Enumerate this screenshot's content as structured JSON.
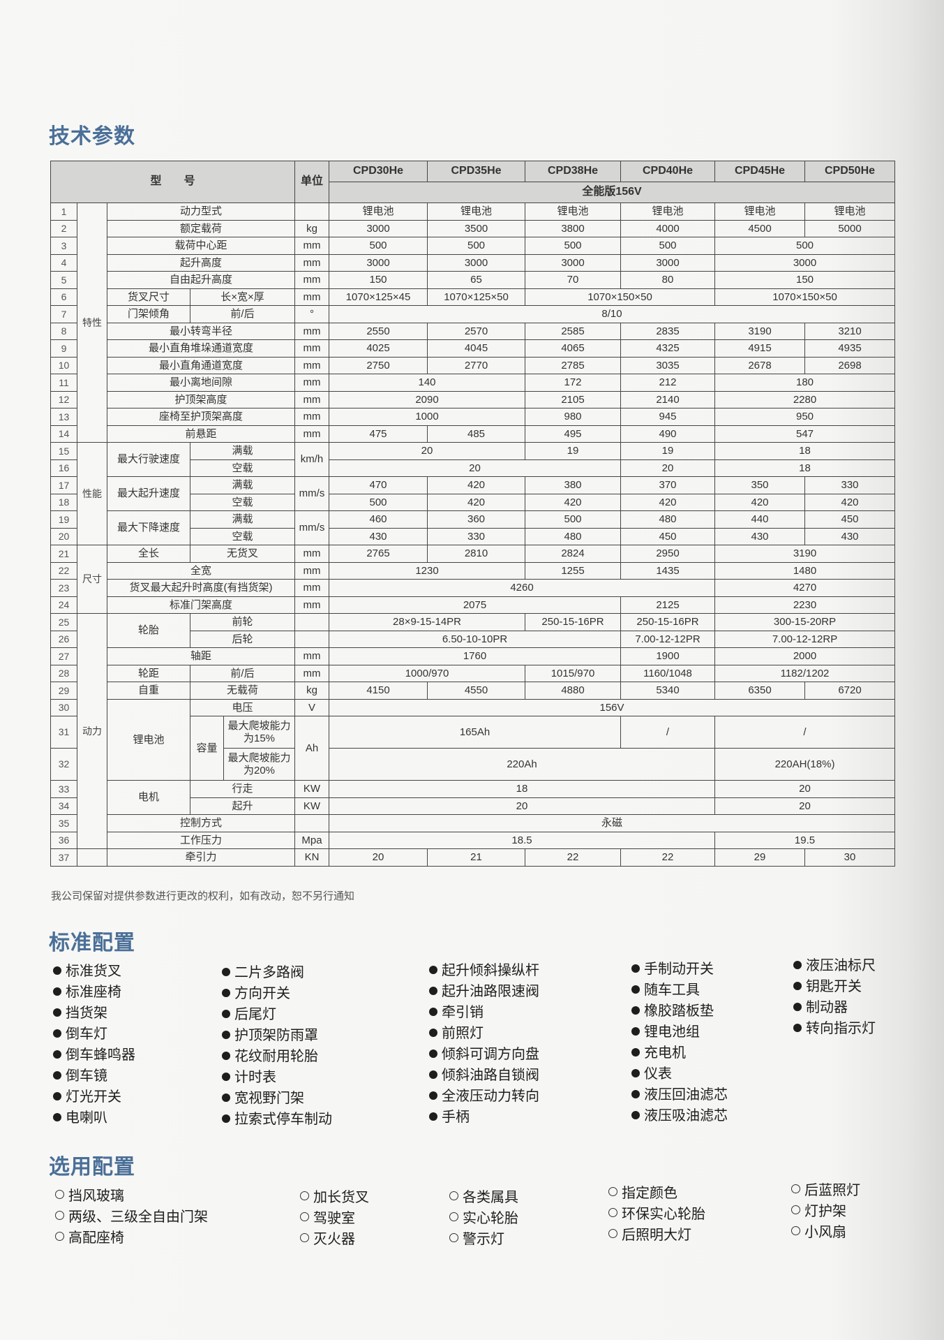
{
  "spec": {
    "title": "技术参数",
    "header": {
      "model_label": "型　　号",
      "unit_label": "单位",
      "models": [
        "CPD30He",
        "CPD35He",
        "CPD38He",
        "CPD40He",
        "CPD45He",
        "CPD50He"
      ],
      "edition": "全能版156V"
    },
    "rows": [
      {
        "no": "1",
        "cat": {
          "t": "特性",
          "rs": 14
        },
        "labels": [
          {
            "t": "动力型式",
            "cs": 3
          }
        ],
        "unit": {
          "t": "",
          "rs": 1
        },
        "values": [
          "锂电池",
          "锂电池",
          "锂电池",
          "锂电池",
          "锂电池",
          "锂电池"
        ]
      },
      {
        "no": "2",
        "labels": [
          {
            "t": "额定载荷",
            "cs": 3
          }
        ],
        "unit": {
          "t": "kg",
          "rs": 1
        },
        "values": [
          "3000",
          "3500",
          "3800",
          "4000",
          "4500",
          "5000"
        ]
      },
      {
        "no": "3",
        "labels": [
          {
            "t": "载荷中心距",
            "cs": 3
          }
        ],
        "unit": {
          "t": "mm",
          "rs": 1
        },
        "values": [
          "500",
          "500",
          "500",
          "500",
          {
            "v": "500",
            "span": 2
          }
        ]
      },
      {
        "no": "4",
        "labels": [
          {
            "t": "起升高度",
            "cs": 3
          }
        ],
        "unit": {
          "t": "mm",
          "rs": 1
        },
        "values": [
          "3000",
          "3000",
          "3000",
          "3000",
          {
            "v": "3000",
            "span": 2
          }
        ]
      },
      {
        "no": "5",
        "labels": [
          {
            "t": "自由起升高度",
            "cs": 3
          }
        ],
        "unit": {
          "t": "mm",
          "rs": 1
        },
        "values": [
          "150",
          "65",
          "70",
          "80",
          {
            "v": "150",
            "span": 2
          }
        ]
      },
      {
        "no": "6",
        "labels": [
          {
            "t": "货叉尺寸",
            "cs": 1
          },
          {
            "t": "长×宽×厚",
            "cs": 2
          }
        ],
        "unit": {
          "t": "mm",
          "rs": 1
        },
        "values": [
          "1070×125×45",
          "1070×125×50",
          {
            "v": "1070×150×50",
            "span": 2
          },
          {
            "v": "1070×150×50",
            "span": 2
          }
        ]
      },
      {
        "no": "7",
        "labels": [
          {
            "t": "门架倾角",
            "cs": 1
          },
          {
            "t": "前/后",
            "cs": 2
          }
        ],
        "unit": {
          "t": "°",
          "rs": 1
        },
        "values": [
          {
            "v": "8/10",
            "span": 6
          }
        ]
      },
      {
        "no": "8",
        "labels": [
          {
            "t": "最小转弯半径",
            "cs": 3
          }
        ],
        "unit": {
          "t": "mm",
          "rs": 1
        },
        "values": [
          "2550",
          "2570",
          "2585",
          "2835",
          "3190",
          "3210"
        ]
      },
      {
        "no": "9",
        "labels": [
          {
            "t": "最小直角堆垛通道宽度",
            "cs": 3
          }
        ],
        "unit": {
          "t": "mm",
          "rs": 1
        },
        "values": [
          "4025",
          "4045",
          "4065",
          "4325",
          "4915",
          "4935"
        ]
      },
      {
        "no": "10",
        "labels": [
          {
            "t": "最小直角通道宽度",
            "cs": 3
          }
        ],
        "unit": {
          "t": "mm",
          "rs": 1
        },
        "values": [
          "2750",
          "2770",
          "2785",
          "3035",
          "2678",
          "2698"
        ]
      },
      {
        "no": "11",
        "labels": [
          {
            "t": "最小离地间隙",
            "cs": 3
          }
        ],
        "unit": {
          "t": "mm",
          "rs": 1
        },
        "values": [
          {
            "v": "140",
            "span": 2
          },
          "172",
          "212",
          {
            "v": "180",
            "span": 2
          }
        ]
      },
      {
        "no": "12",
        "labels": [
          {
            "t": "护顶架高度",
            "cs": 3
          }
        ],
        "unit": {
          "t": "mm",
          "rs": 1
        },
        "values": [
          {
            "v": "2090",
            "span": 2
          },
          "2105",
          "2140",
          {
            "v": "2280",
            "span": 2
          }
        ]
      },
      {
        "no": "13",
        "labels": [
          {
            "t": "座椅至护顶架高度",
            "cs": 3
          }
        ],
        "unit": {
          "t": "mm",
          "rs": 1
        },
        "values": [
          {
            "v": "1000",
            "span": 2
          },
          "980",
          "945",
          {
            "v": "950",
            "span": 2
          }
        ]
      },
      {
        "no": "14",
        "labels": [
          {
            "t": "前悬距",
            "cs": 3
          }
        ],
        "unit": {
          "t": "mm",
          "rs": 1
        },
        "values": [
          "475",
          "485",
          "495",
          "490",
          {
            "v": "547",
            "span": 2
          }
        ]
      },
      {
        "no": "15",
        "cat": {
          "t": "性能",
          "rs": 6
        },
        "labels": [
          {
            "t": "最大行驶速度",
            "cs": 1,
            "rs": 2
          },
          {
            "t": "满载",
            "cs": 2
          }
        ],
        "unit": {
          "t": "km/h",
          "rs": 2
        },
        "values": [
          {
            "v": "20",
            "span": 2
          },
          "19",
          "19",
          {
            "v": "18",
            "span": 2
          }
        ]
      },
      {
        "no": "16",
        "labels": [
          {
            "t": "空载",
            "cs": 2
          }
        ],
        "values": [
          {
            "v": "20",
            "span": 3
          },
          "20",
          {
            "v": "18",
            "span": 2
          }
        ]
      },
      {
        "no": "17",
        "labels": [
          {
            "t": "最大起升速度",
            "cs": 1,
            "rs": 2
          },
          {
            "t": "满载",
            "cs": 2
          }
        ],
        "unit": {
          "t": "mm/s",
          "rs": 2
        },
        "values": [
          "470",
          "420",
          "380",
          "370",
          "350",
          "330"
        ]
      },
      {
        "no": "18",
        "labels": [
          {
            "t": "空载",
            "cs": 2
          }
        ],
        "values": [
          "500",
          "420",
          "420",
          "420",
          "420",
          "420"
        ]
      },
      {
        "no": "19",
        "labels": [
          {
            "t": "最大下降速度",
            "cs": 1,
            "rs": 2
          },
          {
            "t": "满载",
            "cs": 2
          }
        ],
        "unit": {
          "t": "mm/s",
          "rs": 2
        },
        "values": [
          "460",
          "360",
          "500",
          "480",
          "440",
          "450"
        ]
      },
      {
        "no": "20",
        "labels": [
          {
            "t": "空载",
            "cs": 2
          }
        ],
        "values": [
          "430",
          "330",
          "480",
          "450",
          "430",
          "430"
        ]
      },
      {
        "no": "21",
        "cat": {
          "t": "尺寸",
          "rs": 4
        },
        "labels": [
          {
            "t": "全长",
            "cs": 1
          },
          {
            "t": "无货叉",
            "cs": 2
          }
        ],
        "unit": {
          "t": "mm",
          "rs": 1
        },
        "values": [
          "2765",
          "2810",
          "2824",
          "2950",
          {
            "v": "3190",
            "span": 2
          }
        ]
      },
      {
        "no": "22",
        "labels": [
          {
            "t": "全宽",
            "cs": 3
          }
        ],
        "unit": {
          "t": "mm",
          "rs": 1
        },
        "values": [
          {
            "v": "1230",
            "span": 2
          },
          "1255",
          "1435",
          {
            "v": "1480",
            "span": 2
          }
        ]
      },
      {
        "no": "23",
        "labels": [
          {
            "t": "货叉最大起升时高度(有挡货架)",
            "cs": 3
          }
        ],
        "unit": {
          "t": "mm",
          "rs": 1
        },
        "values": [
          {
            "v": "4260",
            "span": 4
          },
          {
            "v": "4270",
            "span": 2
          }
        ]
      },
      {
        "no": "24",
        "labels": [
          {
            "t": "标准门架高度",
            "cs": 3
          }
        ],
        "unit": {
          "t": "mm",
          "rs": 1
        },
        "values": [
          {
            "v": "2075",
            "span": 3
          },
          "2125",
          {
            "v": "2230",
            "span": 2
          }
        ]
      },
      {
        "no": "25",
        "cat": {
          "t": "动力",
          "rs": 12
        },
        "labels": [
          {
            "t": "轮胎",
            "cs": 1,
            "rs": 2
          },
          {
            "t": "前轮",
            "cs": 2
          }
        ],
        "unit": {
          "t": "",
          "rs": 1
        },
        "values": [
          {
            "v": "28×9-15-14PR",
            "span": 2
          },
          "250-15-16PR",
          "250-15-16PR",
          {
            "v": "300-15-20RP",
            "span": 2
          }
        ]
      },
      {
        "no": "26",
        "labels": [
          {
            "t": "后轮",
            "cs": 2
          }
        ],
        "unit": {
          "t": "",
          "rs": 1
        },
        "values": [
          {
            "v": "6.50-10-10PR",
            "span": 3
          },
          "7.00-12-12PR",
          {
            "v": "7.00-12-12RP",
            "span": 2
          }
        ]
      },
      {
        "no": "27",
        "labels": [
          {
            "t": "轴距",
            "cs": 3
          }
        ],
        "unit": {
          "t": "mm",
          "rs": 1
        },
        "values": [
          {
            "v": "1760",
            "span": 3
          },
          "1900",
          {
            "v": "2000",
            "span": 2
          }
        ]
      },
      {
        "no": "28",
        "labels": [
          {
            "t": "轮距",
            "cs": 1
          },
          {
            "t": "前/后",
            "cs": 2
          }
        ],
        "unit": {
          "t": "mm",
          "rs": 1
        },
        "values": [
          {
            "v": "1000/970",
            "span": 2
          },
          "1015/970",
          "1160/1048",
          {
            "v": "1182/1202",
            "span": 2
          }
        ]
      },
      {
        "no": "29",
        "labels": [
          {
            "t": "自重",
            "cs": 1
          },
          {
            "t": "无载荷",
            "cs": 2
          }
        ],
        "unit": {
          "t": "kg",
          "rs": 1
        },
        "values": [
          "4150",
          "4550",
          "4880",
          "5340",
          "6350",
          "6720"
        ]
      },
      {
        "no": "30",
        "labels": [
          {
            "t": "锂电池",
            "cs": 1,
            "rs": 3
          },
          {
            "t": "电压",
            "cs": 2
          }
        ],
        "unit": {
          "t": "V",
          "rs": 1
        },
        "values": [
          {
            "v": "156V",
            "span": 6
          }
        ]
      },
      {
        "no": "31",
        "tall": true,
        "labels": [
          {
            "t": "容量",
            "cs": 1,
            "rs": 2
          },
          {
            "t": "最大爬坡能力为15%",
            "cs": 1
          }
        ],
        "unit": {
          "t": "Ah",
          "rs": 2
        },
        "values": [
          {
            "v": "165Ah",
            "span": 3
          },
          "/",
          {
            "v": "/",
            "span": 2
          }
        ]
      },
      {
        "no": "32",
        "tall": true,
        "labels": [
          {
            "t": "最大爬坡能力为20%",
            "cs": 1
          }
        ],
        "values": [
          {
            "v": "220Ah",
            "span": 4
          },
          {
            "v": "220AH(18%)",
            "span": 2
          }
        ]
      },
      {
        "no": "33",
        "labels": [
          {
            "t": "电机",
            "cs": 1,
            "rs": 2
          },
          {
            "t": "行走",
            "cs": 2
          }
        ],
        "unit": {
          "t": "KW",
          "rs": 1
        },
        "values": [
          {
            "v": "18",
            "span": 4
          },
          {
            "v": "20",
            "span": 2
          }
        ]
      },
      {
        "no": "34",
        "labels": [
          {
            "t": "起升",
            "cs": 2
          }
        ],
        "unit": {
          "t": "KW",
          "rs": 1
        },
        "values": [
          {
            "v": "20",
            "span": 4
          },
          {
            "v": "20",
            "span": 2
          }
        ]
      },
      {
        "no": "35",
        "labels": [
          {
            "t": "控制方式",
            "cs": 3
          }
        ],
        "unit": {
          "t": "",
          "rs": 1
        },
        "values": [
          {
            "v": "永磁",
            "span": 6
          }
        ]
      },
      {
        "no": "36",
        "labels": [
          {
            "t": "工作压力",
            "cs": 3
          }
        ],
        "unit": {
          "t": "Mpa",
          "rs": 1
        },
        "values": [
          {
            "v": "18.5",
            "span": 4
          },
          {
            "v": "19.5",
            "span": 2
          }
        ]
      },
      {
        "no": "37",
        "cat": {
          "t": "",
          "rs": 1
        },
        "labels": [
          {
            "t": "牵引力",
            "cs": 3
          }
        ],
        "unit": {
          "t": "KN",
          "rs": 1
        },
        "values": [
          "20",
          "21",
          "22",
          "22",
          "29",
          "30"
        ]
      }
    ]
  },
  "note": "我公司保留对提供参数进行更改的权利，如有改动，恕不另行通知",
  "standard": {
    "title": "标准配置",
    "columns": [
      [
        "标准货叉",
        "标准座椅",
        "挡货架",
        "倒车灯",
        "倒车蜂鸣器",
        "倒车镜",
        "灯光开关",
        "电喇叭"
      ],
      [
        "二片多路阀",
        "方向开关",
        "后尾灯",
        "护顶架防雨罩",
        "花纹耐用轮胎",
        "计时表",
        "宽视野门架",
        "拉索式停车制动"
      ],
      [
        "起升倾斜操纵杆",
        "起升油路限速阀",
        "牵引销",
        "前照灯",
        "倾斜可调方向盘",
        "倾斜油路自锁阀",
        "全液压动力转向",
        "手柄"
      ],
      [
        "手制动开关",
        "随车工具",
        "橡胶踏板垫",
        "锂电池组",
        "充电机",
        "仪表",
        "液压回油滤芯",
        "液压吸油滤芯"
      ],
      [
        "液压油标尺",
        "钥匙开关",
        "制动器",
        "转向指示灯"
      ]
    ]
  },
  "optional": {
    "title": "选用配置",
    "columns": [
      [
        "挡风玻璃",
        "两级、三级全自由门架",
        "高配座椅"
      ],
      [
        "加长货叉",
        "驾驶室",
        "灭火器"
      ],
      [
        "各类属具",
        "实心轮胎",
        "警示灯"
      ],
      [
        "指定颜色",
        "环保实心轮胎",
        "后照明大灯"
      ],
      [
        "后蓝照灯",
        "灯护架",
        "小风扇"
      ]
    ]
  },
  "colors": {
    "heading": "#4a6f98",
    "header_bg": "#d6d6d4",
    "grid": "#444444"
  }
}
